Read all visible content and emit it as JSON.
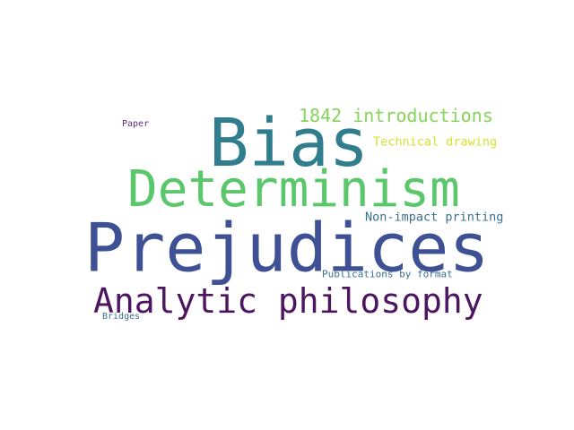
{
  "word_cloud": {
    "words": [
      {
        "text": "Prejudices",
        "color": "#3e5194"
      },
      {
        "text": "Bias",
        "color": "#2f7d8d"
      },
      {
        "text": "Determinism",
        "color": "#5ac76b"
      },
      {
        "text": "Analytic philosophy",
        "color": "#4d1660"
      },
      {
        "text": "1842 introductions",
        "color": "#86d55a"
      },
      {
        "text": "Technical drawing",
        "color": "#d6e22a"
      },
      {
        "text": "Non-impact printing",
        "color": "#3a6f8f"
      },
      {
        "text": "Publications by format",
        "color": "#3a6f8f"
      },
      {
        "text": "Paper",
        "color": "#5e2a7a"
      },
      {
        "text": "Bridges",
        "color": "#3a6f8f"
      }
    ]
  }
}
